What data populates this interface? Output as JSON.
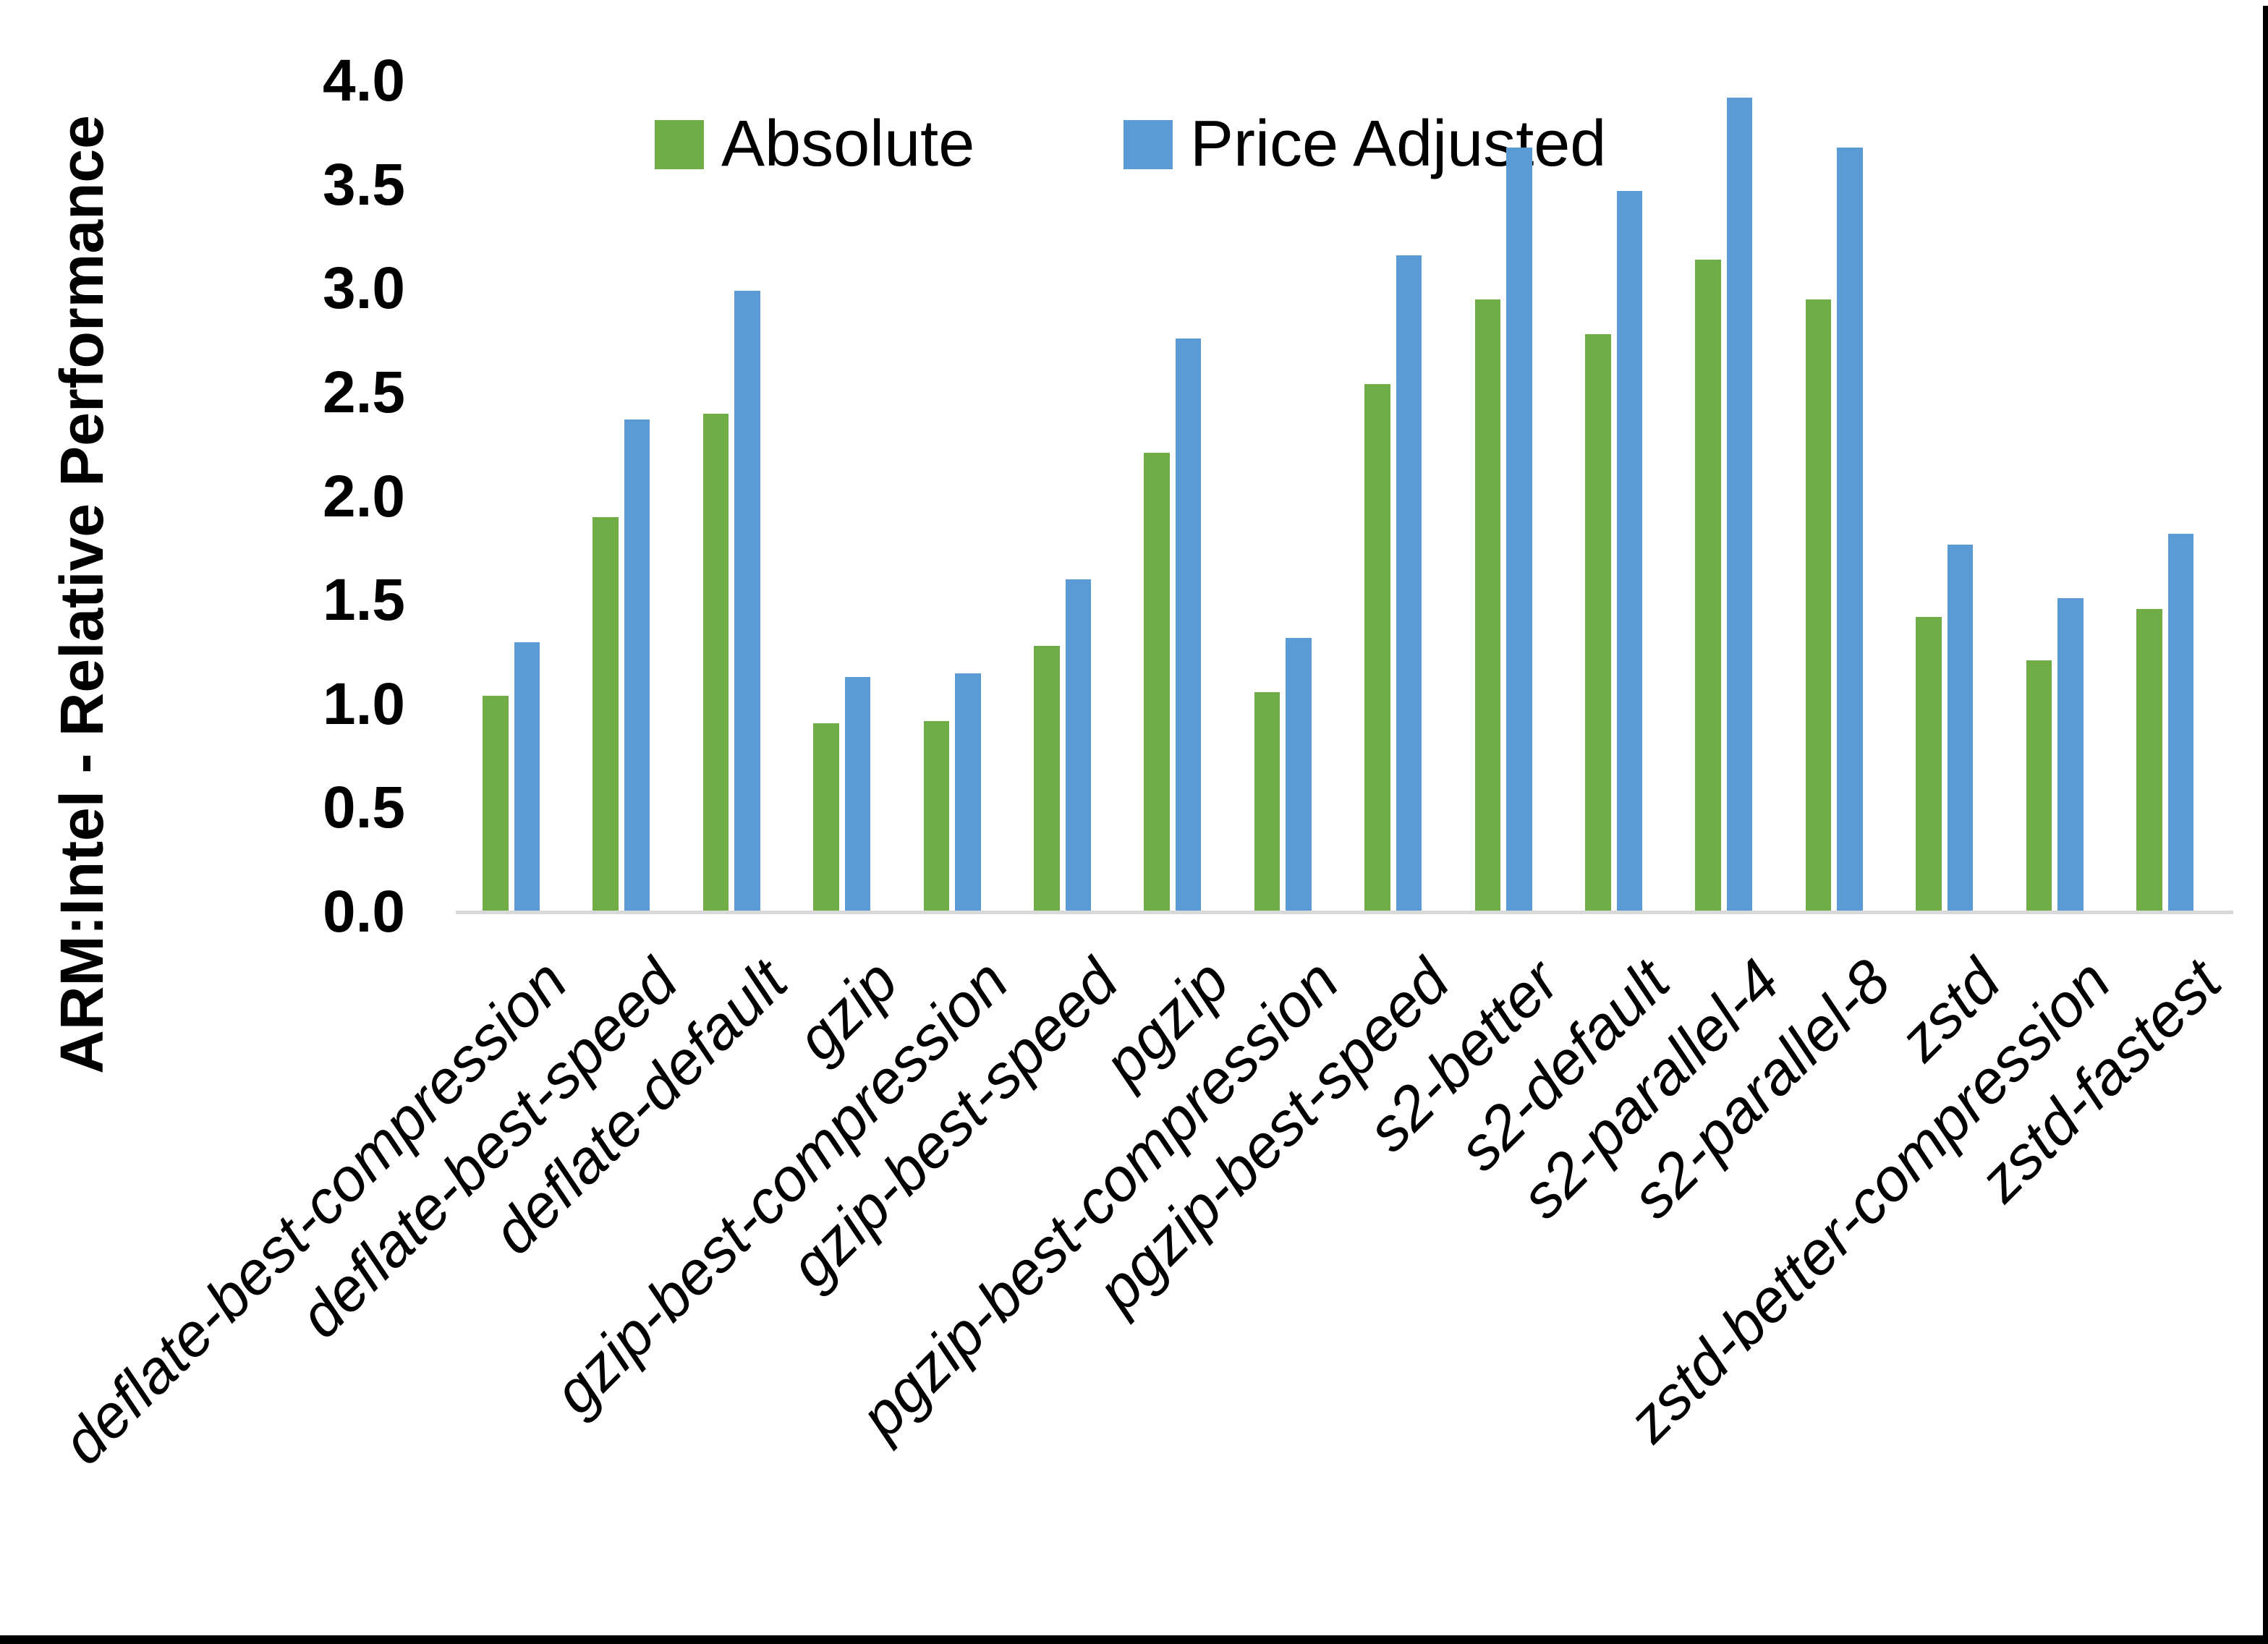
{
  "chart_data": {
    "type": "bar",
    "title": "",
    "ylabel": "ARM:Intel - Relative Performance",
    "xlabel": "",
    "ylim": [
      0,
      4.0
    ],
    "ytick_step": 0.5,
    "yticks": [
      "0.0",
      "0.5",
      "1.0",
      "1.5",
      "2.0",
      "2.5",
      "3.0",
      "3.5",
      "4.0"
    ],
    "grid": false,
    "legend_position": "top-center",
    "categories": [
      "deflate-best-compression",
      "deflate-best-speed",
      "deflate-default",
      "gzip",
      "gzip-best-compression",
      "gzip-best-speed",
      "pgzip",
      "pgzip-best-compression",
      "pgzip-best-speed",
      "s2-better",
      "s2-default",
      "s2-parallel-4",
      "s2-parallel-8",
      "zstd",
      "zstd-better-compression",
      "zstd-fastest"
    ],
    "series": [
      {
        "name": "Absolute",
        "color": "#70AD47",
        "values": [
          1.04,
          1.9,
          2.4,
          0.91,
          0.92,
          1.28,
          2.21,
          1.06,
          2.54,
          2.95,
          2.78,
          3.14,
          2.95,
          1.42,
          1.21,
          1.46
        ]
      },
      {
        "name": "Price Adjusted",
        "color": "#5B9BD5",
        "values": [
          1.3,
          2.37,
          2.99,
          1.13,
          1.15,
          1.6,
          2.76,
          1.32,
          3.16,
          3.68,
          3.47,
          3.92,
          3.68,
          1.77,
          1.51,
          1.82
        ]
      }
    ]
  },
  "legend": {
    "absolute_label": "Absolute",
    "price_adjusted_label": "Price Adjusted"
  },
  "colors": {
    "absolute": "#70AD47",
    "price_adjusted": "#5B9BD5",
    "axis_line": "#D9D9D9",
    "text": "#000000",
    "border": "#000000"
  }
}
